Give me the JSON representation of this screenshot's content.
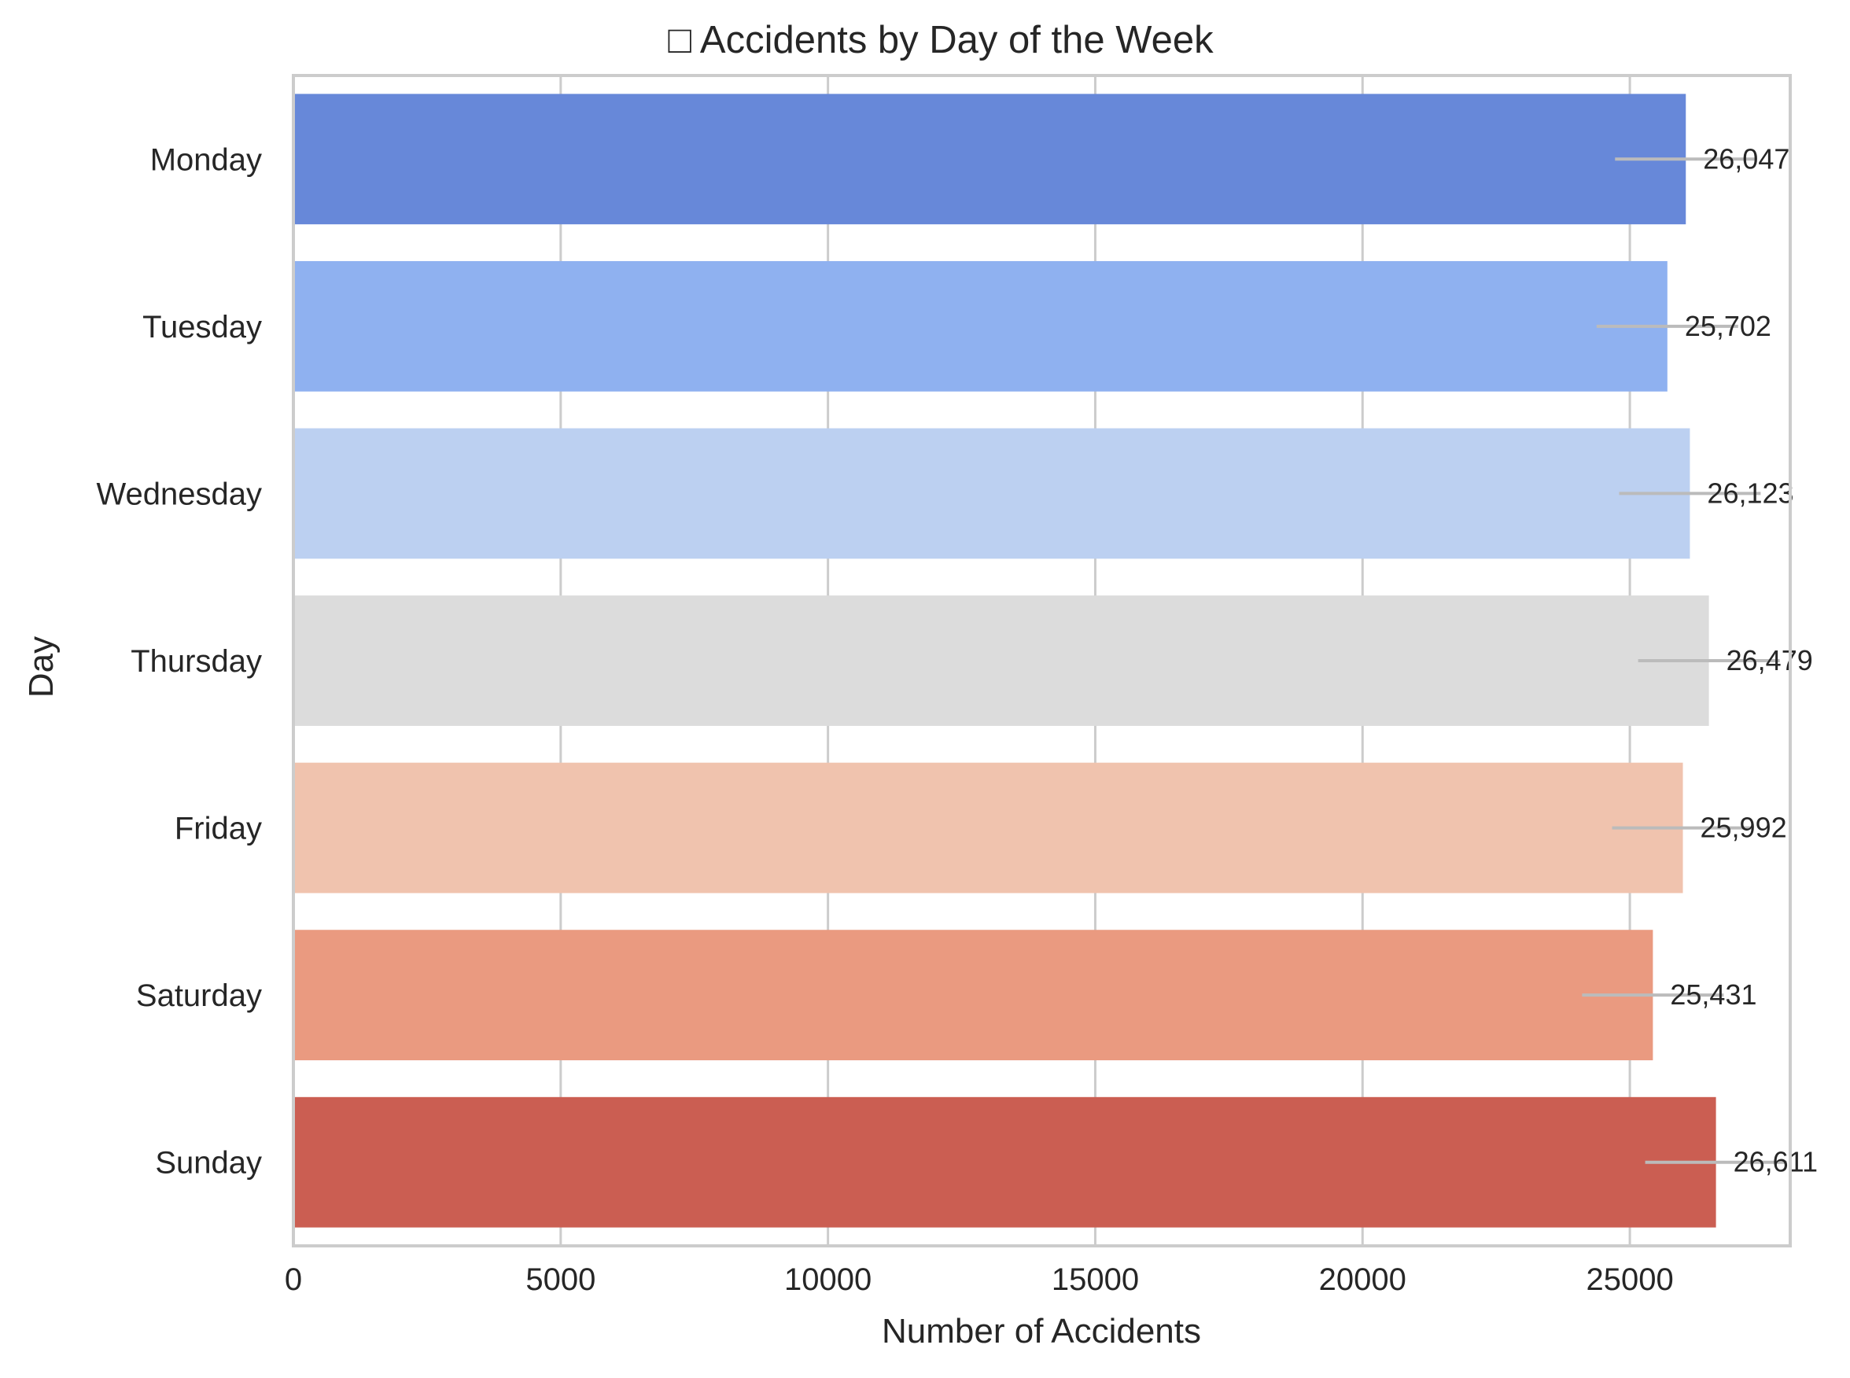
{
  "chart_data": {
    "type": "bar",
    "orientation": "horizontal",
    "title": "□ Accidents by Day of the Week",
    "xlabel": "Number of Accidents",
    "ylabel": "Day",
    "categories": [
      "Monday",
      "Tuesday",
      "Wednesday",
      "Thursday",
      "Friday",
      "Saturday",
      "Sunday"
    ],
    "values": [
      26047,
      25702,
      26123,
      26479,
      25992,
      25431,
      26611
    ],
    "value_labels": [
      "26,047",
      "25,702",
      "26,123",
      "26,479",
      "25,992",
      "25,431",
      "26,611"
    ],
    "colors": [
      "#6788d9",
      "#8fb1f0",
      "#bcd0f1",
      "#dcdcdc",
      "#f0c3ae",
      "#ea9a80",
      "#cb5e52"
    ],
    "xlim": [
      0,
      28000
    ],
    "xticks": [
      0,
      5000,
      10000,
      15000,
      20000,
      25000
    ],
    "xtick_labels": [
      "0",
      "5000",
      "10000",
      "15000",
      "20000",
      "25000"
    ],
    "grid": true,
    "error_bars": true
  }
}
